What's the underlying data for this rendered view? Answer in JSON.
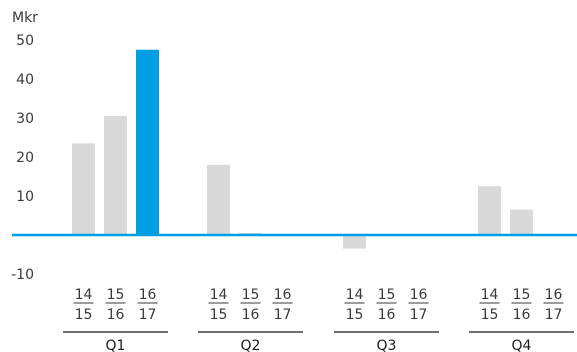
{
  "chart_data": {
    "type": "bar",
    "unit": "Mkr",
    "ylim": [
      -10,
      50
    ],
    "yticks": [
      -10,
      10,
      20,
      30,
      40,
      50
    ],
    "grid": false,
    "quarters": [
      "Q1",
      "Q2",
      "Q3",
      "Q4"
    ],
    "periods": [
      {
        "top": "14",
        "bottom": "15"
      },
      {
        "top": "15",
        "bottom": "16"
      },
      {
        "top": "16",
        "bottom": "17"
      }
    ],
    "series": [
      {
        "values": [
          23.5,
          18.0,
          -3.5,
          12.5
        ]
      },
      {
        "values": [
          30.5,
          0.5,
          0.0,
          6.5
        ]
      },
      {
        "values": [
          47.5,
          0.0,
          0.0,
          0.0
        ]
      }
    ]
  },
  "colors": {
    "bar": "#d9d9d9",
    "highlight": "#009fe3",
    "zero_line": "#009fe3",
    "text": "#3a3a3a",
    "rule": "#1a1a1a"
  }
}
